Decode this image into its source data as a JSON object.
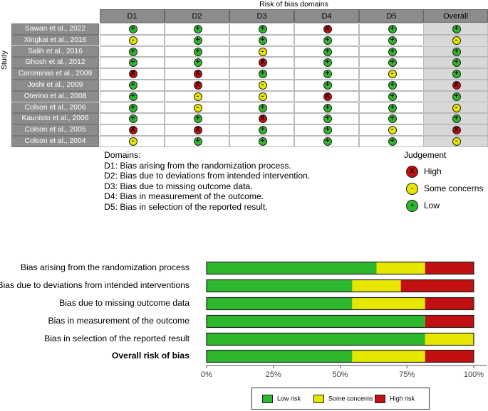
{
  "colors": {
    "low": "#2db82d",
    "some": "#e6e600",
    "high": "#c20f0f",
    "header": "#8c8c8c",
    "overall_bg": "#d8d8d8"
  },
  "traffic_light": {
    "title": "Risk of bias domains",
    "y_axis_label": "Study",
    "columns": [
      "D1",
      "D2",
      "D3",
      "D4",
      "D5",
      "Overall"
    ],
    "symbols": {
      "low": "+",
      "some": "-",
      "high": "X"
    },
    "studies": [
      {
        "name": "Sawan et al., 2022",
        "ratings": [
          "low",
          "low",
          "low",
          "high",
          "low",
          "low"
        ]
      },
      {
        "name": "Xingkai et al., 2016",
        "ratings": [
          "some",
          "low",
          "low",
          "low",
          "low",
          "some"
        ]
      },
      {
        "name": "Salih et al., 2016",
        "ratings": [
          "low",
          "low",
          "some",
          "low",
          "low",
          "low"
        ]
      },
      {
        "name": "Ghosh et al., 2012",
        "ratings": [
          "low",
          "low",
          "high",
          "low",
          "low",
          "low"
        ]
      },
      {
        "name": "Corominas  et al., 2009",
        "ratings": [
          "high",
          "high",
          "low",
          "low",
          "some",
          "low"
        ]
      },
      {
        "name": "Joshi et al., 2009",
        "ratings": [
          "low",
          "high",
          "some",
          "low",
          "low",
          "high"
        ]
      },
      {
        "name": "Oterino et al., 2008",
        "ratings": [
          "low",
          "some",
          "some",
          "high",
          "low",
          "low"
        ]
      },
      {
        "name": "Colson  et al., 2006",
        "ratings": [
          "low",
          "some",
          "low",
          "low",
          "low",
          "some"
        ]
      },
      {
        "name": "Kaunisto et al., 2006",
        "ratings": [
          "low",
          "low",
          "high",
          "low",
          "low",
          "low"
        ]
      },
      {
        "name": "Colson  et al., 2005",
        "ratings": [
          "high",
          "high",
          "low",
          "low",
          "some",
          "high"
        ]
      },
      {
        "name": "Colson  et al., 2004",
        "ratings": [
          "some",
          "low",
          "low",
          "low",
          "low",
          "some"
        ]
      }
    ]
  },
  "domains_legend": {
    "heading": "Domains:",
    "items": [
      "D1: Bias arising from the randomization process.",
      "D2: Bias due to deviations from intended intervention.",
      "D3: Bias due to missing outcome data.",
      "D4: Bias in measurement of the outcome.",
      "D5: Bias in selection of the reported result."
    ]
  },
  "judgement_legend": {
    "title": "Judgement",
    "items": [
      {
        "key": "high",
        "label": "High"
      },
      {
        "key": "some",
        "label": "Some concerns"
      },
      {
        "key": "low",
        "label": "Low"
      }
    ]
  },
  "chart_data": {
    "type": "bar",
    "orientation": "horizontal",
    "stacked": true,
    "categories": [
      "Bias arising from the randomization process",
      "Bias due to deviations from intended interventions",
      "Bias due to missing outcome data",
      "Bias in measurement of the outcome",
      "Bias in selection of the reported result",
      "Overall risk of bias"
    ],
    "series": [
      {
        "name": "Low risk",
        "values": [
          63.6,
          54.5,
          54.5,
          81.8,
          81.8,
          54.5
        ]
      },
      {
        "name": "Some concerns",
        "values": [
          18.2,
          18.2,
          27.3,
          0,
          18.2,
          27.3
        ]
      },
      {
        "name": "High risk",
        "values": [
          18.2,
          27.3,
          18.2,
          18.2,
          0,
          18.2
        ]
      }
    ],
    "xlim": [
      0,
      100
    ],
    "x_ticks": [
      "0%",
      "25%",
      "50%",
      "75%",
      "100%"
    ],
    "legend_position": "bottom"
  }
}
